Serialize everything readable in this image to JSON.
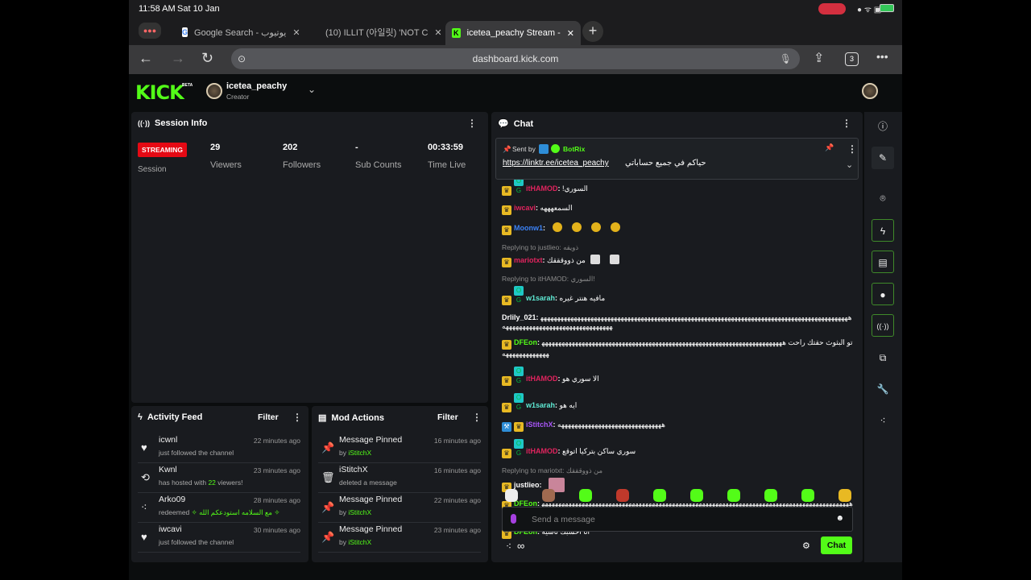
{
  "status_bar": {
    "time": "11:58 AM",
    "date": "Sat 10 Jan"
  },
  "browser": {
    "tabs": [
      {
        "title": "Google Search - يوتيوب",
        "favicon": "google-icon",
        "active": false
      },
      {
        "title": "(10) ILLIT (아일릿) 'NOT C",
        "favicon": "globe-icon",
        "active": false
      },
      {
        "title": "icetea_peachy Stream -",
        "favicon": "kick-icon",
        "active": true
      }
    ],
    "url": "dashboard.kick.com",
    "tab_count": "3"
  },
  "header": {
    "logo": "KICK",
    "logo_badge": "BETA",
    "channel_name": "icetea_peachy",
    "role": "Creator"
  },
  "session": {
    "title": "Session Info",
    "status": "STREAMING",
    "status_label": "Session",
    "stats": [
      {
        "value": "29",
        "label": "Viewers"
      },
      {
        "value": "202",
        "label": "Followers"
      },
      {
        "value": "-",
        "label": "Sub Counts"
      },
      {
        "value": "00:33:59",
        "label": "Time Live"
      }
    ]
  },
  "activity": {
    "title": "Activity Feed",
    "filter": "Filter",
    "items": [
      {
        "icon": "heart-icon",
        "user": "icwnl",
        "time": "22 minutes ago",
        "sub": "just followed the channel"
      },
      {
        "icon": "host-icon",
        "user": "Kwnl",
        "time": "23 minutes ago",
        "sub_pre": "has hosted with ",
        "sub_hl": "22",
        "sub_post": " viewers!"
      },
      {
        "icon": "points-icon",
        "user": "Arko09",
        "time": "28 minutes ago",
        "sub_pre": "redeemed ",
        "sub_hl": "✧ مع السلامه استودعكم الله ✧",
        "sub_post": ""
      },
      {
        "icon": "heart-icon",
        "user": "iwcavi",
        "time": "30 minutes ago",
        "sub": "just followed the channel"
      }
    ]
  },
  "mod_actions": {
    "title": "Mod Actions",
    "filter": "Filter",
    "items": [
      {
        "icon": "pin-icon",
        "title": "Message Pinned",
        "time": "16 minutes ago",
        "sub_pre": "by ",
        "sub_hl": "iStitchX"
      },
      {
        "icon": "trash-icon",
        "title": "iStitchX",
        "time": "16 minutes ago",
        "sub_pre": "deleted a message",
        "sub_hl": ""
      },
      {
        "icon": "pin-icon",
        "title": "Message Pinned",
        "time": "22 minutes ago",
        "sub_pre": "by ",
        "sub_hl": "iStitchX"
      },
      {
        "icon": "pin-icon",
        "title": "Message Pinned",
        "time": "23 minutes ago",
        "sub_pre": "by ",
        "sub_hl": "iStitchX"
      }
    ]
  },
  "chat": {
    "title": "Chat",
    "pinned": {
      "sent_by": "Sent by",
      "user": "BotRix",
      "link": "https://linktr.ee/icetea_peachy",
      "text": "حياكم في جميع حساباتي"
    },
    "messages": [
      {
        "badges": [
          "sub",
          "og"
        ],
        "user": "itHAMOD",
        "color": "#e0245e",
        "text": "السوري!"
      },
      {
        "badges": [
          "sub"
        ],
        "user": "iwcavi",
        "color": "#e0245e",
        "text": "السمعهههه"
      },
      {
        "badges": [
          "sub"
        ],
        "user": "Moonw1",
        "color": "#3b82f6",
        "text": "",
        "emotes": 4
      },
      {
        "reply": "Replying to justlieo: ذويقه",
        "badges": [
          "sub"
        ],
        "user": "mariotxt",
        "color": "#e0245e",
        "text": "من ذووقققك",
        "emotes": 2,
        "emote_style": "w"
      },
      {
        "reply": "Replying to itHAMOD: السوري!",
        "badges": [
          "sub",
          "og"
        ],
        "user": "w1sarah",
        "color": "#5eead4",
        "text": "مافيه هنتر غيره"
      },
      {
        "badges": [],
        "user": "Drlily_021",
        "color": "#ffffff",
        "text": "هههههههههههههههههههههههههههههههههههههههههههههههههههههههههههههههههههههههههههههههههههههههههههههههههههههههههههههههههههههههههههههه"
      },
      {
        "badges": [
          "sub"
        ],
        "user": "DFEon",
        "color": "#53fc18",
        "text": "تو البثوث حقتك راحت ههههههههههههههههههههههههههههههههههههههههههههههههههههههههههههههههههههههههههههههههههههههه"
      },
      {
        "badges": [
          "sub",
          "og"
        ],
        "user": "itHAMOD",
        "color": "#e0245e",
        "text": "الا سوري هو"
      },
      {
        "badges": [
          "sub",
          "og"
        ],
        "user": "w1sarah",
        "color": "#5eead4",
        "text": "ايه هو"
      },
      {
        "badges": [
          "mod",
          "sub"
        ],
        "user": "iStitchX",
        "color": "#a855f7",
        "text": "هههههههههههههههههههههههههههههههه"
      },
      {
        "badges": [
          "sub",
          "og"
        ],
        "user": "itHAMOD",
        "color": "#e0245e",
        "text": "سوري ساكن بتركيا اتوقع"
      },
      {
        "reply": "Replying to mariotxt: من ذووقققك",
        "badges": [
          "sub"
        ],
        "user": "justlieo",
        "color": "#ffffff",
        "text": "",
        "emotes": 1,
        "emote_style": "p"
      },
      {
        "badges": [
          "sub"
        ],
        "user": "DFEon",
        "color": "#53fc18",
        "text": "ههههههههههههههههههههههههههههههههههههههههههههههههههههههههههههههههههههههههههههههههههههههههههههههههه"
      },
      {
        "badges": [
          "sub"
        ],
        "user": "DFEon",
        "color": "#53fc18",
        "text": "انا احسبك ناسيه"
      }
    ],
    "input_placeholder": "Send a message",
    "send_label": "Chat",
    "points": "∞"
  },
  "colors": {
    "brand": "#53fc18",
    "streaming": "#e50914",
    "panel": "#191b1f"
  }
}
